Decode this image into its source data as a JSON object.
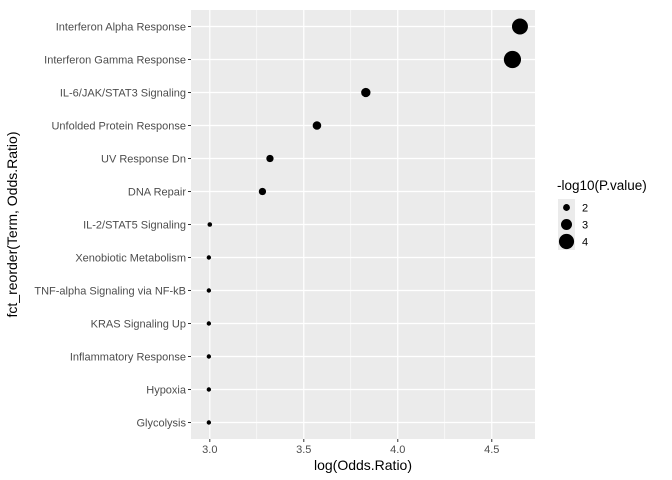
{
  "chart_data": {
    "type": "scatter",
    "xlabel": "log(Odds.Ratio)",
    "ylabel": "fct_reorder(Term, Odds.Ratio)",
    "xlim": [
      2.9,
      4.73
    ],
    "x_ticks": [
      "3.0",
      "3.5",
      "4.0",
      "4.5"
    ],
    "grid": true,
    "panel_background": "#ebebeb",
    "grid_color": "#ffffff",
    "point_color": "#000000",
    "categories": [
      "Interferon Alpha Response",
      "Interferon Gamma Response",
      "IL-6/JAK/STAT3 Signaling",
      "Unfolded Protein Response",
      "UV Response Dn",
      "DNA Repair",
      "IL-2/STAT5 Signaling",
      "Xenobiotic Metabolism",
      "TNF-alpha Signaling via NF-kB",
      "KRAS Signaling Up",
      "Inflammatory Response",
      "Hypoxia",
      "Glycolysis"
    ],
    "x": [
      4.65,
      4.61,
      3.83,
      3.57,
      3.32,
      3.28,
      3.0,
      2.995,
      2.995,
      2.995,
      2.995,
      2.995,
      2.995
    ],
    "size_values": [
      4.2,
      4.5,
      2.6,
      2.4,
      2.1,
      2.1,
      1.45,
      1.4,
      1.4,
      1.4,
      1.4,
      1.4,
      1.4
    ],
    "size_legend": {
      "title": "-log10(P.value)",
      "placement": "right",
      "labels": [
        "2",
        "3",
        "4"
      ],
      "values": [
        2,
        3,
        4
      ]
    }
  }
}
